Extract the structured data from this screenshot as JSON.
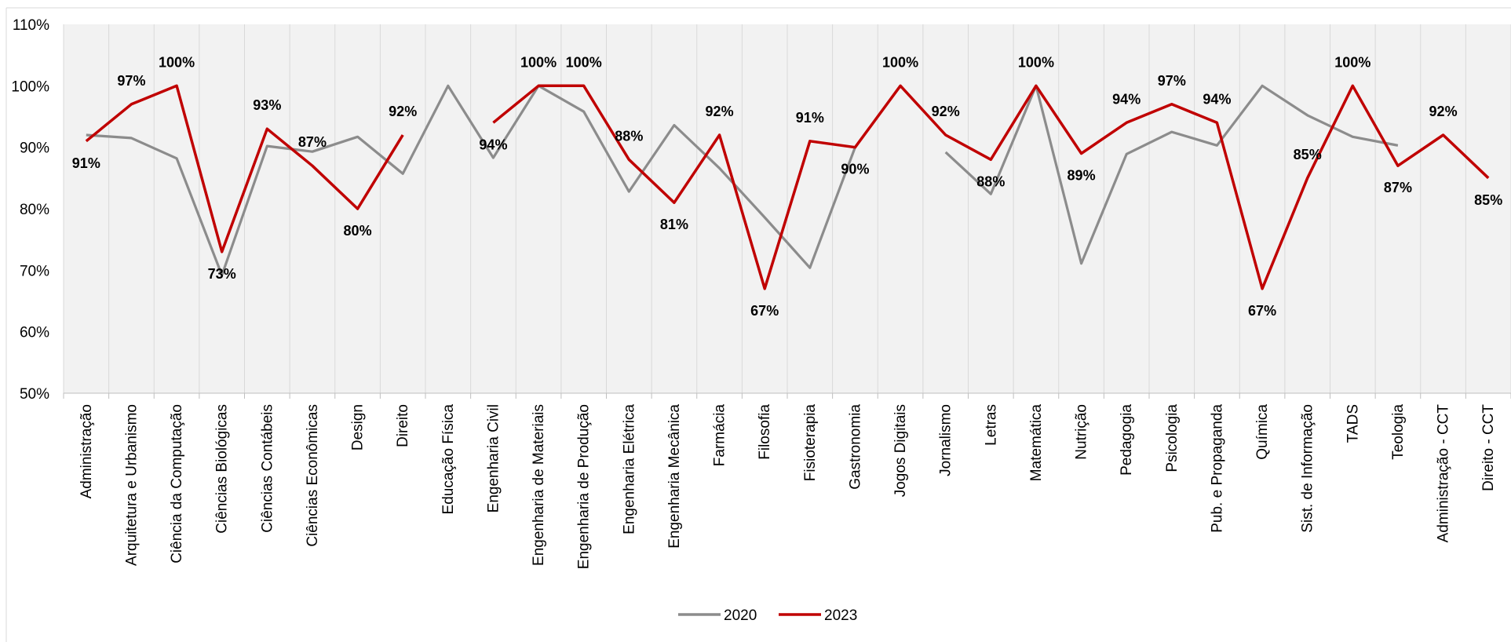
{
  "chart_data": {
    "type": "line",
    "categories": [
      "Administração",
      "Arquitetura e Urbanismo",
      "Ciência da Computação",
      "Ciências Biológicas",
      "Ciências Contábeis",
      "Ciências Econômicas",
      "Design",
      "Direito",
      "Educação Física",
      "Engenharia Civil",
      "Engenharia de Materiais",
      "Engenharia de Produção",
      "Engenharia Elétrica",
      "Engenharia Mecânica",
      "Farmácia",
      "Filosofia",
      "Fisioterapia",
      "Gastronomia",
      "Jogos Digitais",
      "Jornalismo",
      "Letras",
      "Matemática",
      "Nutrição",
      "Pedagogia",
      "Psicologia",
      "Pub. e Propaganda",
      "Química",
      "Sist. de Informação",
      "TADS",
      "Teologia",
      "Administração - CCT",
      "Direito - CCT"
    ],
    "series": [
      {
        "name": "2020",
        "color": "#8c8c8c",
        "values": [
          92.0,
          91.5,
          88.2,
          69.2,
          90.2,
          89.3,
          91.7,
          85.7,
          100,
          88.3,
          100,
          95.8,
          82.8,
          93.6,
          86.6,
          78.6,
          70.4,
          90.0,
          null,
          89.2,
          82.4,
          100,
          71.1,
          88.9,
          92.5,
          90.3,
          100,
          95.2,
          91.7,
          90.3,
          null,
          null
        ]
      },
      {
        "name": "2023",
        "color": "#c00000",
        "values": [
          91,
          97,
          100,
          73,
          93,
          87,
          80,
          92,
          null,
          94,
          100,
          100,
          88,
          81,
          92,
          67,
          91,
          90,
          100,
          92,
          88,
          100,
          89,
          94,
          97,
          94,
          67,
          85,
          100,
          87,
          92,
          85
        ]
      }
    ],
    "data_labels_2023": [
      "91%",
      "97%",
      "100%",
      "73%",
      "93%",
      "87%",
      "80%",
      "92%",
      "",
      "94%",
      "100%",
      "100%",
      "88%",
      "81%",
      "92%",
      "67%",
      "91%",
      "90%",
      "100%",
      "92%",
      "88%",
      "100%",
      "89%",
      "94%",
      "97%",
      "94%",
      "67%",
      "85%",
      "100%",
      "87%",
      "92%",
      "85%"
    ],
    "y_ticks": [
      "50%",
      "60%",
      "70%",
      "80%",
      "90%",
      "100%",
      "110%"
    ],
    "ylim": [
      50,
      110
    ],
    "grid": "vertical",
    "legend_position": "bottom",
    "title": "",
    "xlabel": "",
    "ylabel": ""
  }
}
